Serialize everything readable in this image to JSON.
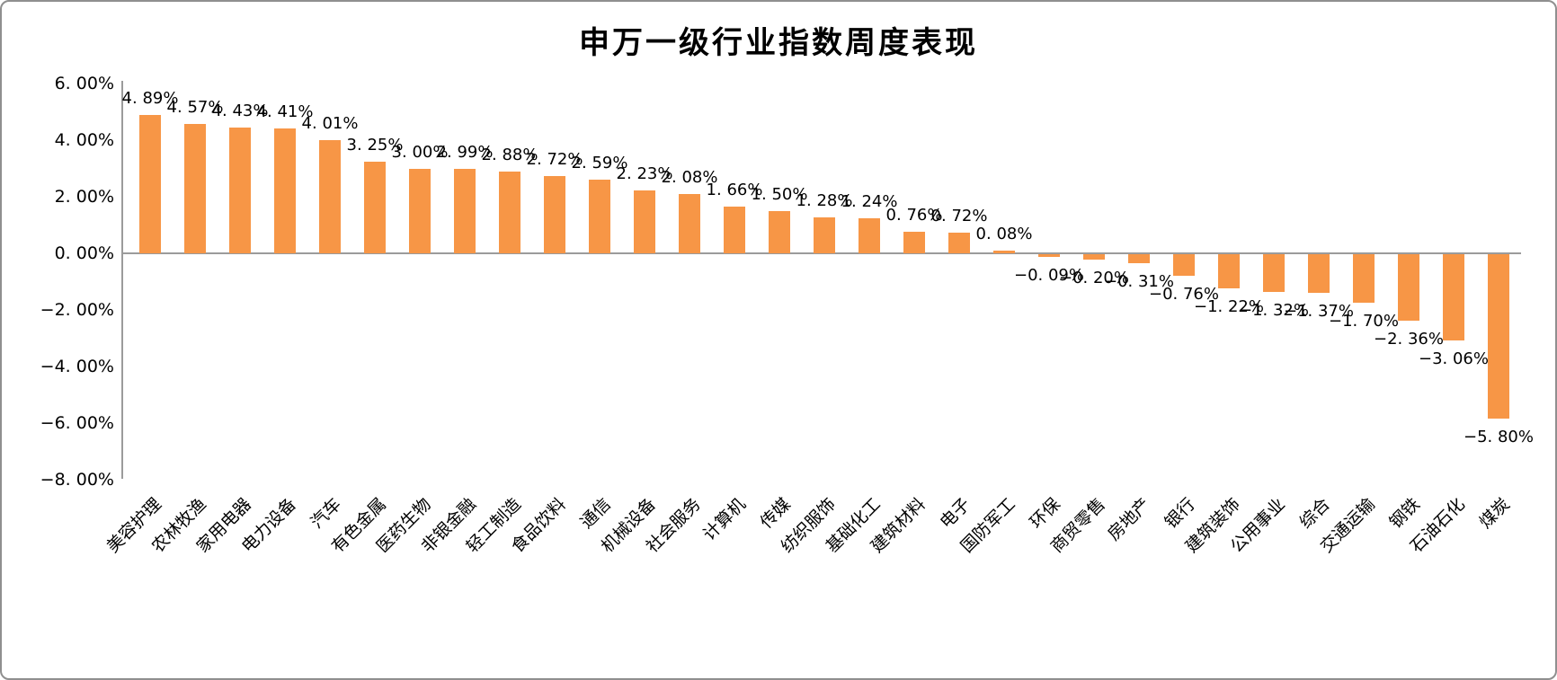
{
  "frame": {
    "background": "#ffffff",
    "border_color": "#8f8f8f"
  },
  "chart_data": {
    "type": "bar",
    "title": "申万一级行业指数周度表现",
    "xlabel": "",
    "ylabel": "",
    "grid": false,
    "legend": null,
    "bar_color": "#F79646",
    "axis_color": "#9b9b9b",
    "text_color": "#000000",
    "ylim": [
      -8,
      6
    ],
    "yticks": [
      {
        "value": 6,
        "label": "6. 00%"
      },
      {
        "value": 4,
        "label": "4. 00%"
      },
      {
        "value": 2,
        "label": "2. 00%"
      },
      {
        "value": 0,
        "label": "0. 00%"
      },
      {
        "value": -2,
        "label": "−2. 00%"
      },
      {
        "value": -4,
        "label": "−4. 00%"
      },
      {
        "value": -6,
        "label": "−6. 00%"
      },
      {
        "value": -8,
        "label": "−8. 00%"
      }
    ],
    "categories": [
      "美容护理",
      "农林牧渔",
      "家用电器",
      "电力设备",
      "汽车",
      "有色金属",
      "医药生物",
      "非银金融",
      "轻工制造",
      "食品饮料",
      "通信",
      "机械设备",
      "社会服务",
      "计算机",
      "传媒",
      "纺织服饰",
      "基础化工",
      "建筑材料",
      "电子",
      "国防军工",
      "环保",
      "商贸零售",
      "房地产",
      "银行",
      "建筑装饰",
      "公用事业",
      "综合",
      "交通运输",
      "钢铁",
      "石油石化",
      "煤炭"
    ],
    "values": [
      4.89,
      4.57,
      4.43,
      4.41,
      4.01,
      3.25,
      3.0,
      2.99,
      2.88,
      2.72,
      2.59,
      2.23,
      2.08,
      1.66,
      1.5,
      1.28,
      1.24,
      0.76,
      0.72,
      0.08,
      -0.09,
      -0.2,
      -0.31,
      -0.76,
      -1.22,
      -1.32,
      -1.37,
      -1.7,
      -2.36,
      -3.06,
      -5.8
    ],
    "value_labels": [
      "4. 89%",
      "4. 57%",
      "4. 43%",
      "4. 41%",
      "4. 01%",
      "3. 25%",
      "3. 00%",
      "2. 99%",
      "2. 88%",
      "2. 72%",
      "2. 59%",
      "2. 23%",
      "2. 08%",
      "1. 66%",
      "1. 50%",
      "1. 28%",
      "1. 24%",
      "0. 76%",
      "0. 72%",
      "0. 08%",
      "−0. 09%",
      "−0. 20%",
      "−0. 31%",
      "−0. 76%",
      "−1. 22%",
      "−1. 32%",
      "−1. 37%",
      "−1. 70%",
      "−2. 36%",
      "−3. 06%",
      "−5. 80%"
    ]
  }
}
